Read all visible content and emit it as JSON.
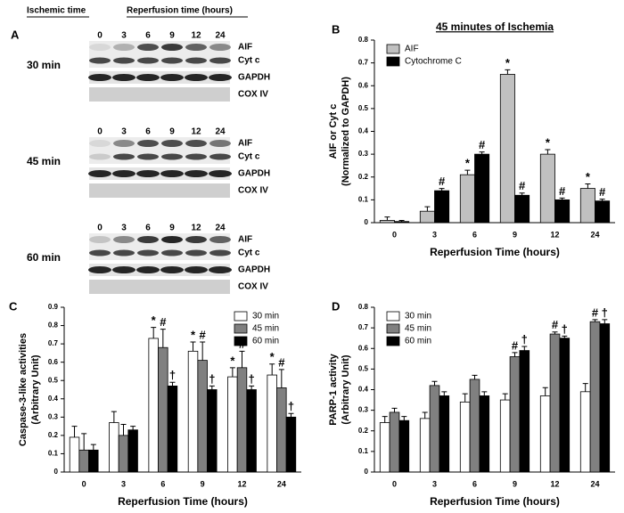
{
  "blot": {
    "panel_label": "A",
    "ischemic_header": "Ischemic time",
    "reperfusion_header": "Reperfusion time (hours)",
    "groups": [
      {
        "label": "30 min",
        "lanes": [
          "0",
          "3",
          "6",
          "9",
          "12",
          "24"
        ],
        "bands": [
          "AIF",
          "Cyt c",
          "GAPDH",
          "COX IV"
        ]
      },
      {
        "label": "45 min",
        "lanes": [
          "0",
          "3",
          "6",
          "9",
          "12",
          "24"
        ],
        "bands": [
          "AIF",
          "Cyt c",
          "GAPDH",
          "COX IV"
        ]
      },
      {
        "label": "60 min",
        "lanes": [
          "0",
          "3",
          "6",
          "9",
          "12",
          "24"
        ],
        "bands": [
          "AIF",
          "Cyt c",
          "GAPDH",
          "COX IV"
        ]
      }
    ]
  },
  "chart_data": [
    {
      "type": "bar",
      "panel_label": "B",
      "title": "45 minutes of Ischemia",
      "ylabel": [
        "AIF or Cyt c",
        "(Normalized to GAPDH)"
      ],
      "xlabel": "Reperfusion Time (hours)",
      "categories": [
        "0",
        "3",
        "6",
        "9",
        "12",
        "24"
      ],
      "ylim": [
        0,
        0.8
      ],
      "yticks": [
        0,
        0.1,
        0.2,
        0.3,
        0.4,
        0.5,
        0.6,
        0.7,
        0.8
      ],
      "legend": "upper left",
      "series": [
        {
          "name": "AIF",
          "color": "#c0c0c0",
          "values": [
            0.01,
            0.05,
            0.21,
            0.65,
            0.3,
            0.15
          ],
          "errors": [
            0.015,
            0.02,
            0.02,
            0.02,
            0.02,
            0.02
          ],
          "markers": [
            null,
            null,
            "*",
            "*",
            "*",
            "*"
          ]
        },
        {
          "name": "Cytochrome C",
          "color": "#000000",
          "values": [
            0.005,
            0.14,
            0.3,
            0.12,
            0.1,
            0.095
          ],
          "errors": [
            0.005,
            0.01,
            0.01,
            0.01,
            0.008,
            0.008
          ],
          "markers": [
            null,
            "#",
            "#",
            "#",
            "#",
            "#"
          ]
        }
      ]
    },
    {
      "type": "bar",
      "panel_label": "C",
      "ylabel": [
        "Caspase-3-like activities",
        "(Arbitrary Unit)"
      ],
      "xlabel": "Reperfusion Time (hours)",
      "categories": [
        "0",
        "3",
        "6",
        "9",
        "12",
        "24"
      ],
      "ylim": [
        0,
        0.9
      ],
      "yticks": [
        0,
        0.1,
        0.2,
        0.3,
        0.4,
        0.5,
        0.6,
        0.7,
        0.8,
        0.9
      ],
      "legend": "upper right",
      "series": [
        {
          "name": "30 min",
          "color": "#ffffff",
          "values": [
            0.19,
            0.27,
            0.73,
            0.66,
            0.52,
            0.53
          ],
          "errors": [
            0.06,
            0.06,
            0.06,
            0.05,
            0.05,
            0.06
          ],
          "markers": [
            null,
            null,
            "*",
            "*",
            "*",
            "*"
          ]
        },
        {
          "name": "45 min",
          "color": "#808080",
          "values": [
            0.12,
            0.2,
            0.68,
            0.61,
            0.57,
            0.46
          ],
          "errors": [
            0.09,
            0.06,
            0.1,
            0.1,
            0.09,
            0.1
          ],
          "markers": [
            null,
            null,
            "#",
            "#",
            "#",
            "#"
          ]
        },
        {
          "name": "60 min",
          "color": "#000000",
          "values": [
            0.12,
            0.23,
            0.47,
            0.45,
            0.45,
            0.3
          ],
          "errors": [
            0.03,
            0.02,
            0.02,
            0.02,
            0.02,
            0.02
          ],
          "markers": [
            null,
            null,
            "†",
            "†",
            "†",
            "†"
          ]
        }
      ]
    },
    {
      "type": "bar",
      "panel_label": "D",
      "ylabel": [
        "PARP-1 activity",
        "(Arbitrary Unit)"
      ],
      "xlabel": "Reperfusion Time (hours)",
      "categories": [
        "0",
        "3",
        "6",
        "9",
        "12",
        "24"
      ],
      "ylim": [
        0,
        0.8
      ],
      "yticks": [
        0,
        0.1,
        0.2,
        0.3,
        0.4,
        0.5,
        0.6,
        0.7,
        0.8
      ],
      "legend": "upper left",
      "series": [
        {
          "name": "30 min",
          "color": "#ffffff",
          "values": [
            0.24,
            0.26,
            0.34,
            0.35,
            0.37,
            0.39
          ],
          "errors": [
            0.03,
            0.03,
            0.04,
            0.03,
            0.04,
            0.04
          ],
          "markers": [
            null,
            null,
            null,
            null,
            null,
            null
          ]
        },
        {
          "name": "45 min",
          "color": "#808080",
          "values": [
            0.29,
            0.42,
            0.45,
            0.56,
            0.67,
            0.73
          ],
          "errors": [
            0.02,
            0.02,
            0.02,
            0.02,
            0.01,
            0.01
          ],
          "markers": [
            null,
            null,
            null,
            "#",
            "#",
            "#"
          ]
        },
        {
          "name": "60 min",
          "color": "#000000",
          "values": [
            0.25,
            0.37,
            0.37,
            0.59,
            0.65,
            0.72
          ],
          "errors": [
            0.02,
            0.02,
            0.02,
            0.02,
            0.01,
            0.02
          ],
          "markers": [
            null,
            null,
            null,
            "†",
            "†",
            "†"
          ]
        }
      ]
    }
  ]
}
